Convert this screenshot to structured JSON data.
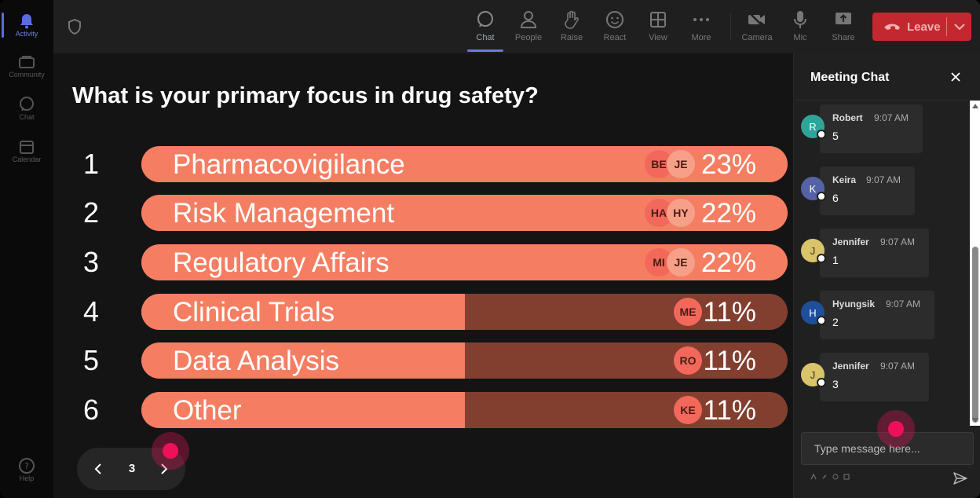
{
  "rail": {
    "items": [
      {
        "label": "Activity",
        "icon": "bell-icon",
        "active": true
      },
      {
        "label": "Community",
        "icon": "community-icon"
      },
      {
        "label": "Chat",
        "icon": "chat-icon"
      },
      {
        "label": "Calendar",
        "icon": "calendar-icon"
      }
    ],
    "help_label": "Help"
  },
  "toolbar": {
    "buttons": [
      {
        "label": "Chat",
        "icon": "chat-bubble-icon",
        "active": true
      },
      {
        "label": "People",
        "icon": "people-icon"
      },
      {
        "label": "Raise",
        "icon": "hand-icon"
      },
      {
        "label": "React",
        "icon": "smile-icon"
      },
      {
        "label": "View",
        "icon": "grid-icon"
      },
      {
        "label": "More",
        "icon": "more-dots-icon"
      },
      {
        "label": "Camera",
        "icon": "camera-off-icon"
      },
      {
        "label": "Mic",
        "icon": "mic-icon"
      },
      {
        "label": "Share",
        "icon": "share-icon"
      }
    ],
    "leave_label": "Leave"
  },
  "poll": {
    "question": "What is your primary focus in drug safety?",
    "options": [
      {
        "num": "1",
        "label": "Pharmacovigilance",
        "percent": "23%",
        "fill": 1.0,
        "avatars": [
          "BE",
          "JE"
        ]
      },
      {
        "num": "2",
        "label": "Risk Management",
        "percent": "22%",
        "fill": 1.0,
        "avatars": [
          "HA",
          "HY"
        ]
      },
      {
        "num": "3",
        "label": "Regulatory Affairs",
        "percent": "22%",
        "fill": 1.0,
        "avatars": [
          "MI",
          "JE"
        ]
      },
      {
        "num": "4",
        "label": "Clinical Trials",
        "percent": "11%",
        "fill": 0.5,
        "avatars": [
          "ME"
        ]
      },
      {
        "num": "5",
        "label": "Data Analysis",
        "percent": "11%",
        "fill": 0.5,
        "avatars": [
          "RO"
        ]
      },
      {
        "num": "6",
        "label": "Other",
        "percent": "11%",
        "fill": 0.5,
        "avatars": [
          "KE"
        ]
      }
    ],
    "colors": {
      "bar_fill": "#f57e62",
      "bar_track": "#823f30"
    }
  },
  "pager": {
    "page": "3"
  },
  "chat": {
    "title": "Meeting Chat",
    "messages": [
      {
        "initial": "R",
        "name": "Robert",
        "time": "9:07 AM",
        "text": "5",
        "color": "#2fa59a"
      },
      {
        "initial": "K",
        "name": "Keira",
        "time": "9:07 AM",
        "text": "6",
        "color": "#5462a8"
      },
      {
        "initial": "J",
        "name": "Jennifer",
        "time": "9:07 AM",
        "text": "1",
        "color": "#d9c46a"
      },
      {
        "initial": "H",
        "name": "Hyungsik",
        "time": "9:07 AM",
        "text": "2",
        "color": "#1f4f9c"
      },
      {
        "initial": "J",
        "name": "Jennifer",
        "time": "9:07 AM",
        "text": "3",
        "color": "#d9c46a"
      }
    ],
    "input_placeholder": "Type message here..."
  }
}
